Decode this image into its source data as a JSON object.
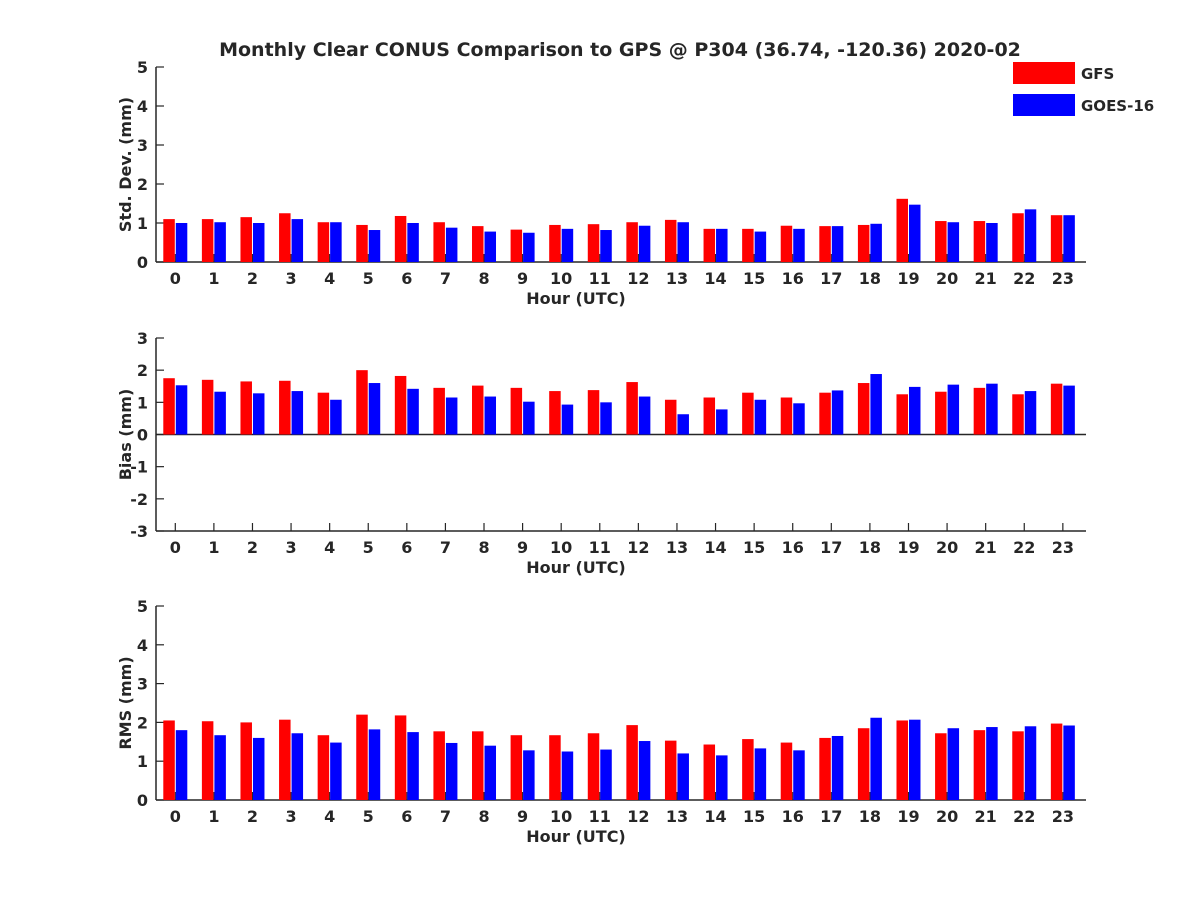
{
  "figure_title": "Monthly Clear CONUS Comparison to GPS @ P304 (36.74, -120.36) 2020-02",
  "colors": {
    "GFS": "#ff0000",
    "GOES-16": "#0000ff",
    "axis": "#262626"
  },
  "legend": {
    "placement": "top-right",
    "entries": [
      "GFS",
      "GOES-16"
    ]
  },
  "chart_data": [
    {
      "type": "bar",
      "xlabel": "Hour (UTC)",
      "ylabel": "Std. Dev. (mm)",
      "ylim": [
        0,
        5
      ],
      "yticks": [
        0,
        1,
        2,
        3,
        4,
        5
      ],
      "categories": [
        "0",
        "1",
        "2",
        "3",
        "4",
        "5",
        "6",
        "7",
        "8",
        "9",
        "10",
        "11",
        "12",
        "13",
        "14",
        "15",
        "16",
        "17",
        "18",
        "19",
        "20",
        "21",
        "22",
        "23"
      ],
      "series": [
        {
          "name": "GFS",
          "values": [
            1.1,
            1.1,
            1.15,
            1.25,
            1.02,
            0.95,
            1.18,
            1.02,
            0.92,
            0.83,
            0.95,
            0.97,
            1.02,
            1.08,
            0.85,
            0.85,
            0.93,
            0.92,
            0.95,
            1.62,
            1.05,
            1.05,
            1.25,
            1.2
          ]
        },
        {
          "name": "GOES-16",
          "values": [
            1.0,
            1.02,
            1.0,
            1.1,
            1.02,
            0.82,
            1.0,
            0.88,
            0.78,
            0.75,
            0.85,
            0.82,
            0.93,
            1.02,
            0.85,
            0.78,
            0.85,
            0.92,
            0.98,
            1.47,
            1.02,
            1.0,
            1.35,
            1.2
          ]
        }
      ]
    },
    {
      "type": "bar",
      "xlabel": "Hour (UTC)",
      "ylabel": "Bias (mm)",
      "ylim": [
        -3,
        3
      ],
      "yticks": [
        -3,
        -2,
        -1,
        0,
        1,
        2,
        3
      ],
      "categories": [
        "0",
        "1",
        "2",
        "3",
        "4",
        "5",
        "6",
        "7",
        "8",
        "9",
        "10",
        "11",
        "12",
        "13",
        "14",
        "15",
        "16",
        "17",
        "18",
        "19",
        "20",
        "21",
        "22",
        "23"
      ],
      "series": [
        {
          "name": "GFS",
          "values": [
            1.75,
            1.7,
            1.65,
            1.67,
            1.3,
            2.0,
            1.82,
            1.45,
            1.52,
            1.45,
            1.35,
            1.38,
            1.63,
            1.08,
            1.15,
            1.3,
            1.15,
            1.3,
            1.6,
            1.25,
            1.33,
            1.45,
            1.25,
            1.58
          ]
        },
        {
          "name": "GOES-16",
          "values": [
            1.53,
            1.33,
            1.28,
            1.35,
            1.08,
            1.6,
            1.42,
            1.15,
            1.18,
            1.02,
            0.93,
            1.0,
            1.18,
            0.63,
            0.78,
            1.08,
            0.97,
            1.37,
            1.88,
            1.48,
            1.55,
            1.58,
            1.35,
            1.52
          ]
        }
      ]
    },
    {
      "type": "bar",
      "xlabel": "Hour (UTC)",
      "ylabel": "RMS (mm)",
      "ylim": [
        0,
        5
      ],
      "yticks": [
        0,
        1,
        2,
        3,
        4,
        5
      ],
      "categories": [
        "0",
        "1",
        "2",
        "3",
        "4",
        "5",
        "6",
        "7",
        "8",
        "9",
        "10",
        "11",
        "12",
        "13",
        "14",
        "15",
        "16",
        "17",
        "18",
        "19",
        "20",
        "21",
        "22",
        "23"
      ],
      "series": [
        {
          "name": "GFS",
          "values": [
            2.05,
            2.03,
            2.0,
            2.07,
            1.67,
            2.2,
            2.18,
            1.77,
            1.77,
            1.67,
            1.67,
            1.72,
            1.93,
            1.53,
            1.43,
            1.57,
            1.48,
            1.6,
            1.85,
            2.05,
            1.72,
            1.8,
            1.77,
            1.97
          ]
        },
        {
          "name": "GOES-16",
          "values": [
            1.8,
            1.67,
            1.6,
            1.72,
            1.48,
            1.82,
            1.75,
            1.47,
            1.4,
            1.28,
            1.25,
            1.3,
            1.52,
            1.2,
            1.15,
            1.33,
            1.28,
            1.65,
            2.12,
            2.07,
            1.85,
            1.88,
            1.9,
            1.92
          ]
        }
      ]
    }
  ]
}
